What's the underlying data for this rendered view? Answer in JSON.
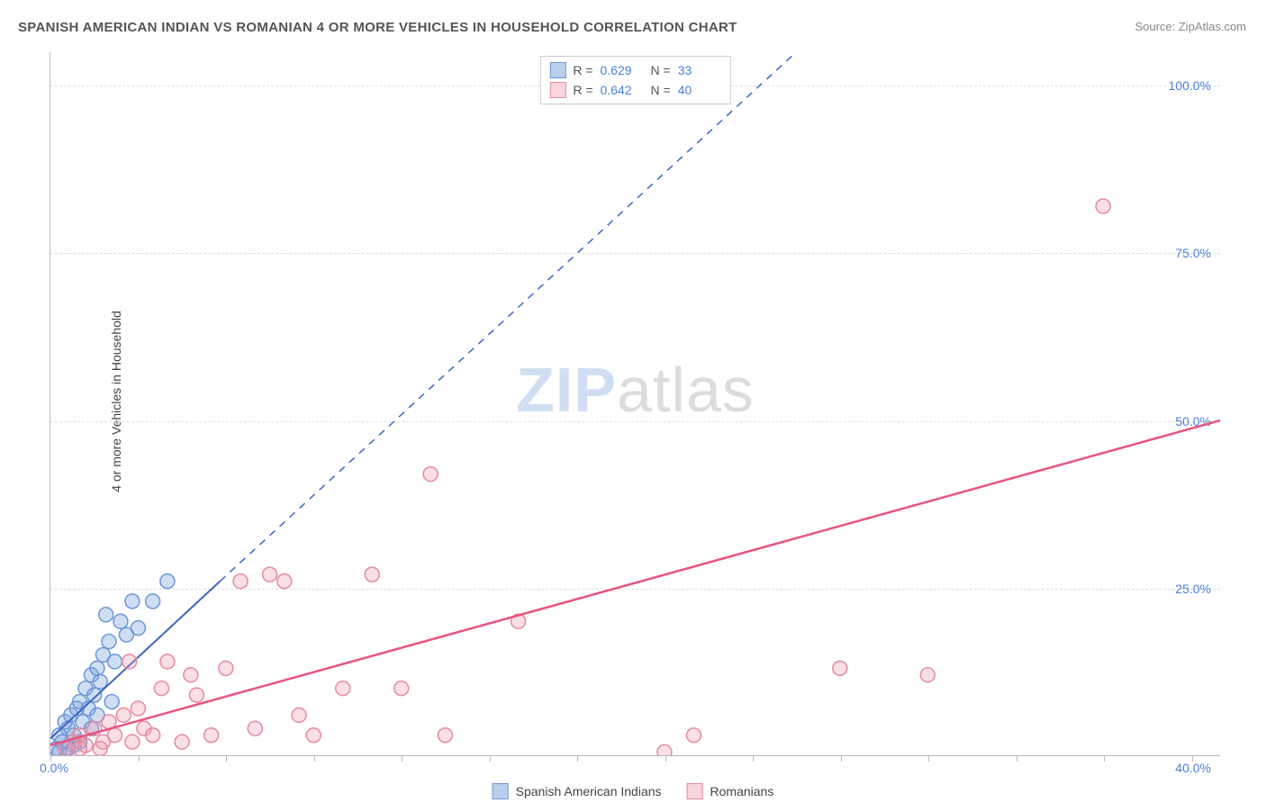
{
  "title": "SPANISH AMERICAN INDIAN VS ROMANIAN 4 OR MORE VEHICLES IN HOUSEHOLD CORRELATION CHART",
  "source": "Source: ZipAtlas.com",
  "ylabel": "4 or more Vehicles in Household",
  "watermark": {
    "part1": "ZIP",
    "part2": "atlas"
  },
  "chart": {
    "type": "scatter",
    "xlim": [
      0,
      40
    ],
    "ylim": [
      0,
      105
    ],
    "x_zero_label": "0.0%",
    "x_max_label": "40.0%",
    "y_ticks": [
      25,
      50,
      75,
      100
    ],
    "y_tick_labels": [
      "25.0%",
      "50.0%",
      "75.0%",
      "100.0%"
    ],
    "x_ticks": [
      0,
      3,
      6,
      9,
      12,
      15,
      18,
      21,
      24,
      27,
      30,
      33,
      36,
      39
    ],
    "grid_color": "#dddddd",
    "axis_color": "#bbbbbb",
    "background": "#ffffff",
    "tick_label_color": "#4a7fd8",
    "marker_radius": 8,
    "marker_stroke_width": 1.5,
    "series": [
      {
        "name": "Spanish American Indians",
        "color_fill": "rgba(120,160,220,0.35)",
        "color_stroke": "#6a96d6",
        "r_value": "0.629",
        "n_value": "33",
        "trend_line": {
          "x1": 0,
          "y1": 2.5,
          "x2": 5.8,
          "y2": 26,
          "dash_x2": 25.5,
          "dash_y2": 105,
          "color": "#3b66c4",
          "width": 2
        },
        "points": [
          [
            0.2,
            1
          ],
          [
            0.3,
            3
          ],
          [
            0.4,
            2
          ],
          [
            0.5,
            5
          ],
          [
            0.6,
            4
          ],
          [
            0.7,
            6
          ],
          [
            0.8,
            3
          ],
          [
            0.9,
            7
          ],
          [
            1.0,
            8
          ],
          [
            1.1,
            5
          ],
          [
            1.2,
            10
          ],
          [
            1.3,
            7
          ],
          [
            1.4,
            12
          ],
          [
            1.5,
            9
          ],
          [
            1.6,
            13
          ],
          [
            1.7,
            11
          ],
          [
            1.8,
            15
          ],
          [
            2.0,
            17
          ],
          [
            2.2,
            14
          ],
          [
            2.4,
            20
          ],
          [
            2.6,
            18
          ],
          [
            2.8,
            23
          ],
          [
            3.0,
            19
          ],
          [
            3.5,
            23
          ],
          [
            4.0,
            26
          ],
          [
            1.9,
            21
          ],
          [
            0.6,
            1
          ],
          [
            1.0,
            2
          ],
          [
            1.4,
            4
          ],
          [
            2.1,
            8
          ],
          [
            0.3,
            0.5
          ],
          [
            0.8,
            1.5
          ],
          [
            1.6,
            6
          ]
        ]
      },
      {
        "name": "Romanians",
        "color_fill": "rgba(240,150,170,0.3)",
        "color_stroke": "#e48aa0",
        "r_value": "0.642",
        "n_value": "40",
        "trend_line": {
          "x1": 0,
          "y1": 1.5,
          "x2": 40,
          "y2": 50,
          "color": "#e8547c",
          "width": 2.5
        },
        "points": [
          [
            0.5,
            1
          ],
          [
            0.8,
            2
          ],
          [
            1.0,
            3
          ],
          [
            1.2,
            1.5
          ],
          [
            1.5,
            4
          ],
          [
            1.8,
            2
          ],
          [
            2.0,
            5
          ],
          [
            2.2,
            3
          ],
          [
            2.5,
            6
          ],
          [
            2.8,
            2
          ],
          [
            3.0,
            7
          ],
          [
            3.2,
            4
          ],
          [
            3.5,
            3
          ],
          [
            4.0,
            14
          ],
          [
            4.5,
            2
          ],
          [
            5.0,
            9
          ],
          [
            5.5,
            3
          ],
          [
            6.0,
            13
          ],
          [
            6.5,
            26
          ],
          [
            7.0,
            4
          ],
          [
            7.5,
            27
          ],
          [
            8.0,
            26
          ],
          [
            9.0,
            3
          ],
          [
            10.0,
            10
          ],
          [
            11.0,
            27
          ],
          [
            12.0,
            10
          ],
          [
            13.0,
            42
          ],
          [
            13.5,
            3
          ],
          [
            16.0,
            20
          ],
          [
            21.0,
            0.5
          ],
          [
            22.0,
            3
          ],
          [
            27.0,
            13
          ],
          [
            30.0,
            12
          ],
          [
            36.0,
            82
          ],
          [
            1.0,
            1
          ],
          [
            1.7,
            1
          ],
          [
            3.8,
            10
          ],
          [
            4.8,
            12
          ],
          [
            2.7,
            14
          ],
          [
            8.5,
            6
          ]
        ]
      }
    ]
  },
  "legend_top": {
    "r_label": "R =",
    "n_label": "N ="
  },
  "legend_bottom": {
    "series1": "Spanish American Indians",
    "series2": "Romanians"
  }
}
